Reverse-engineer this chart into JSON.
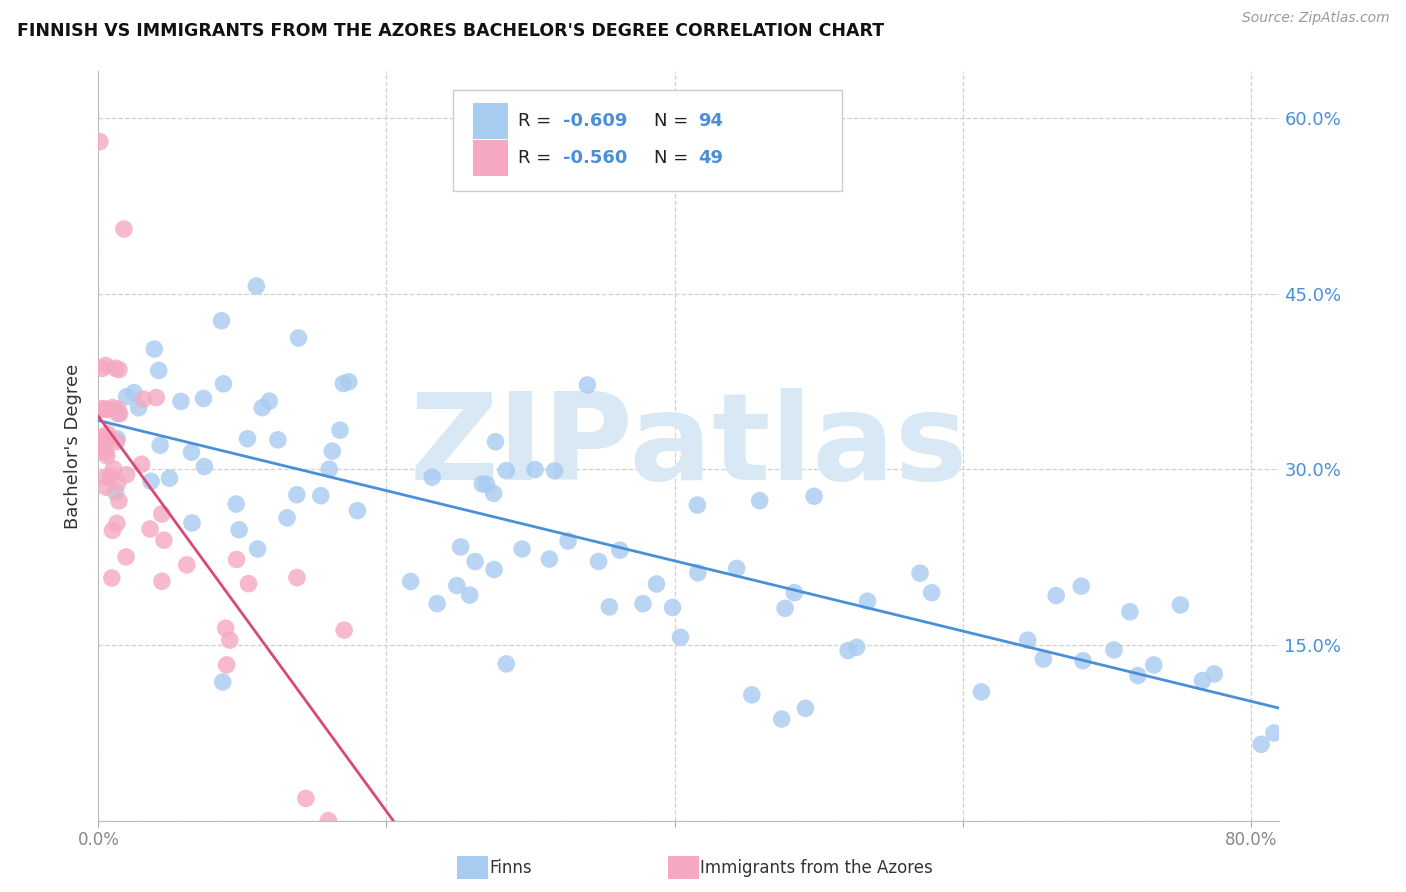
{
  "title": "FINNISH VS IMMIGRANTS FROM THE AZORES BACHELOR'S DEGREE CORRELATION CHART",
  "source": "Source: ZipAtlas.com",
  "ylabel": "Bachelor's Degree",
  "xlim": [
    0.0,
    0.82
  ],
  "ylim": [
    0.0,
    0.64
  ],
  "x_ticks": [
    0.0,
    0.2,
    0.4,
    0.6,
    0.8
  ],
  "x_tick_labels_show": [
    "0.0%",
    "80.0%"
  ],
  "y_ticks": [
    0.0,
    0.15,
    0.3,
    0.45,
    0.6
  ],
  "y_tick_labels": [
    "",
    "15.0%",
    "30.0%",
    "45.0%",
    "60.0%"
  ],
  "color_blue": "#A8CBF0",
  "color_pink": "#F5A8C0",
  "line_blue": "#4A90D9",
  "line_pink": "#D94878",
  "legend_r1_prefix": "R = ",
  "legend_r1_val": "-0.609",
  "legend_n1_prefix": "   N = ",
  "legend_n1_val": "94",
  "legend_r2_prefix": "R = ",
  "legend_r2_val": "-0.560",
  "legend_n2_prefix": "   N = ",
  "legend_n2_val": "49",
  "legend_label1": "Finns",
  "legend_label2": "Immigrants from the Azores",
  "watermark": "ZIPatlas",
  "watermark_color": "#D8E8F5"
}
